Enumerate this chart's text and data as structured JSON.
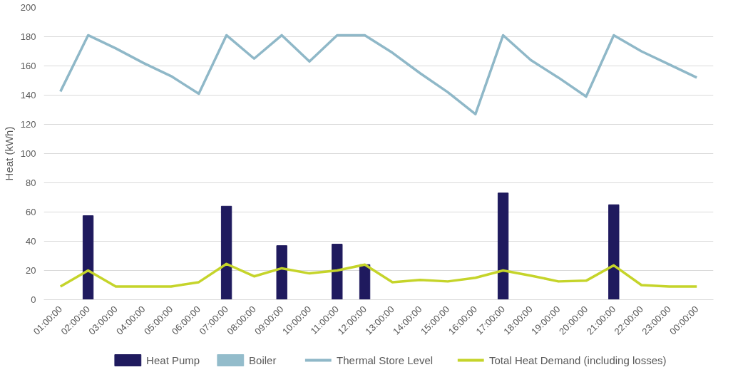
{
  "chart_data": {
    "type": "bar",
    "ylabel": "Heat (kWh)",
    "categories": [
      "01:00:00",
      "02:00:00",
      "03:00:00",
      "04:00:00",
      "05:00:00",
      "06:00:00",
      "07:00:00",
      "08:00:00",
      "09:00:00",
      "10:00:00",
      "11:00:00",
      "12:00:00",
      "13:00:00",
      "14:00:00",
      "15:00:00",
      "16:00:00",
      "17:00:00",
      "18:00:00",
      "19:00:00",
      "20:00:00",
      "21:00:00",
      "22:00:00",
      "23:00:00",
      "00:00:00"
    ],
    "series": [
      {
        "name": "Heat Pump",
        "color": "#1f1a5e",
        "values": [
          null,
          57.5,
          null,
          null,
          null,
          null,
          64,
          null,
          37,
          null,
          38,
          24,
          null,
          null,
          null,
          null,
          73,
          null,
          null,
          null,
          65,
          null,
          null,
          null
        ]
      },
      {
        "name": "Boiler",
        "color": "#93bccb",
        "values": [
          null,
          null,
          null,
          null,
          null,
          null,
          null,
          null,
          null,
          null,
          null,
          null,
          null,
          null,
          null,
          null,
          null,
          null,
          null,
          null,
          null,
          null,
          null,
          null
        ]
      },
      {
        "name": "Thermal Store Level",
        "type": "line",
        "color": "#8fb8c8",
        "values": [
          142.5,
          181,
          172,
          162,
          153,
          141,
          181,
          165,
          181,
          163,
          181,
          181,
          169,
          155,
          142,
          127,
          181,
          164,
          152,
          139,
          181,
          170,
          161,
          152
        ]
      },
      {
        "name": "Total Heat Demand (including losses)",
        "type": "line",
        "color": "#c5d42a",
        "values": [
          9,
          20,
          9,
          9,
          9,
          12,
          24.5,
          16,
          21.5,
          18,
          20,
          24,
          12,
          13.5,
          12.5,
          15,
          20,
          16.5,
          12.5,
          13,
          23.5,
          10,
          9,
          9
        ]
      }
    ],
    "ylim": [
      0,
      200
    ],
    "yticks": [
      0,
      20,
      40,
      60,
      80,
      100,
      120,
      140,
      160,
      180,
      200
    ],
    "grid": "y",
    "legend": "bottom"
  }
}
